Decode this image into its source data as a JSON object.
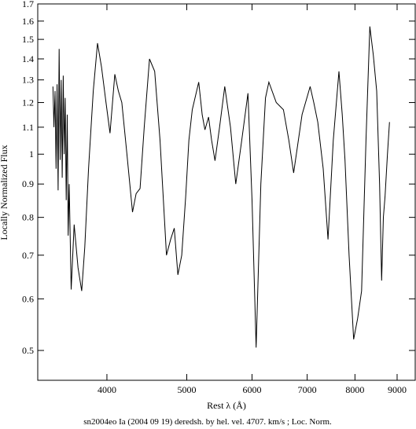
{
  "chart_data": {
    "type": "line",
    "xlabel": "Rest λ (Å)",
    "ylabel": "Locally Normalized Flux",
    "caption": "sn2004eo Ia (2004 09 19) deredsh. by hel. vel.  4707. km/s ;  Loc. Norm.",
    "x": [
      3440,
      3450,
      3460,
      3470,
      3480,
      3490,
      3500,
      3510,
      3520,
      3530,
      3540,
      3550,
      3560,
      3570,
      3580,
      3590,
      3600,
      3620,
      3650,
      3690,
      3728,
      3760,
      3800,
      3850,
      3896,
      3940,
      3990,
      4035,
      4089,
      4130,
      4170,
      4230,
      4297,
      4340,
      4388,
      4440,
      4505,
      4571,
      4640,
      4724,
      4780,
      4828,
      4877,
      4930,
      4985,
      5030,
      5077,
      5170,
      5220,
      5260,
      5314,
      5360,
      5410,
      5480,
      5560,
      5650,
      5734,
      5830,
      5932,
      6000,
      6069,
      6150,
      6230,
      6290,
      6420,
      6550,
      6650,
      6740,
      6900,
      7058,
      7130,
      7210,
      7320,
      7420,
      7530,
      7650,
      7720,
      7780,
      7870,
      7970,
      8060,
      8150,
      8250,
      8340,
      8420,
      8500,
      8570,
      8620,
      8660,
      8700,
      8760,
      8810
    ],
    "series": [
      {
        "name": "sn2004eo",
        "color": "#000000",
        "values": [
          1.27,
          1.1,
          1.25,
          0.95,
          1.28,
          0.88,
          1.45,
          0.98,
          1.3,
          0.92,
          1.32,
          1.0,
          1.22,
          0.85,
          1.15,
          0.75,
          0.9,
          0.62,
          0.78,
          0.67,
          0.617,
          0.72,
          0.95,
          1.25,
          1.48,
          1.36,
          1.2,
          1.077,
          1.326,
          1.25,
          1.2,
          1.0,
          0.815,
          0.87,
          0.886,
          1.1,
          1.4,
          1.34,
          1.05,
          0.7,
          0.74,
          0.77,
          0.653,
          0.7,
          0.86,
          1.05,
          1.17,
          1.29,
          1.15,
          1.09,
          1.14,
          1.05,
          0.977,
          1.1,
          1.27,
          1.1,
          0.9,
          1.05,
          1.24,
          0.85,
          0.505,
          0.9,
          1.22,
          1.29,
          1.2,
          1.17,
          1.05,
          0.936,
          1.15,
          1.27,
          1.2,
          1.12,
          0.95,
          0.74,
          1.05,
          1.34,
          1.15,
          0.98,
          0.7,
          0.52,
          0.56,
          0.617,
          1.05,
          1.57,
          1.42,
          1.25,
          0.9,
          0.64,
          0.8,
          0.86,
          1.0,
          1.12
        ]
      }
    ],
    "xlim": [
      3297,
      9467
    ],
    "ylim": [
      0.45,
      1.7
    ],
    "xscale": "log",
    "yscale": "log",
    "xticks": [
      4000,
      5000,
      6000,
      7000,
      8000,
      9000
    ],
    "yticks": [
      0.5,
      0.6,
      0.7,
      0.8,
      0.9,
      1,
      1.1,
      1.2,
      1.3,
      1.4,
      1.5,
      1.6,
      1.7
    ]
  }
}
